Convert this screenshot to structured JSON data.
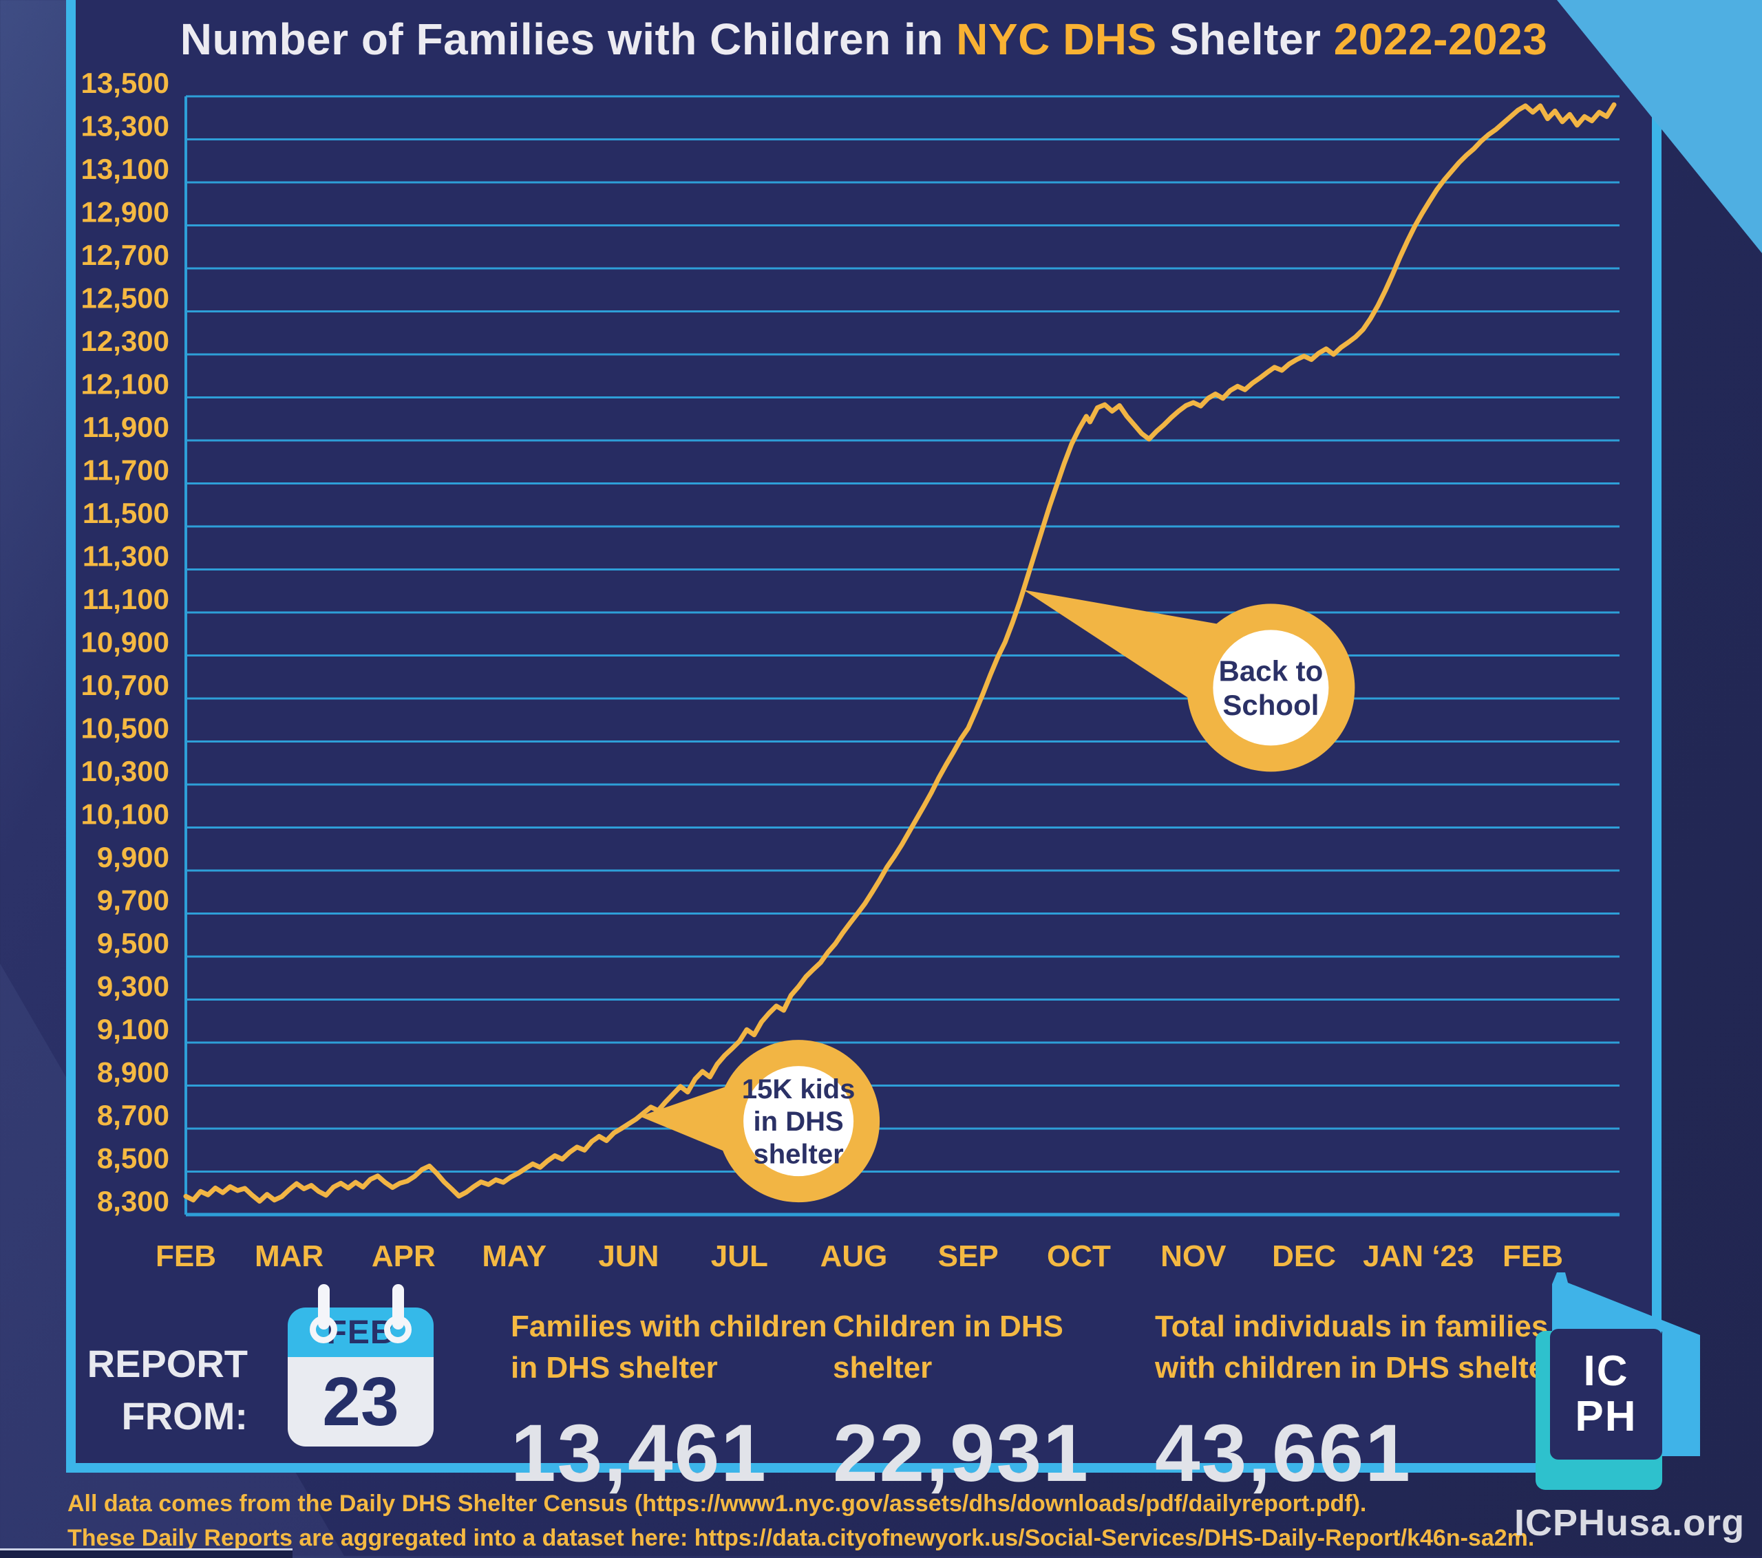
{
  "title": {
    "part1": "Number of Families with Children in ",
    "part2": "NYC DHS",
    "part3": " Shelter ",
    "part4": "2022-2023"
  },
  "colors": {
    "panel_navy": "#272C62",
    "border_cyan": "#3CB5E9",
    "corner_triangle_blue": "#4FAFE2",
    "gold_line": "#F2B544",
    "gold_text": "#F5B942",
    "grid_cyan": "#2E9FD8",
    "white_text": "#ECEBF1",
    "big_number_gray": "#E1E3E9",
    "callout_text_navy": "#2B3166",
    "calendar_header_blue": "#35B9E9",
    "logo_teal": "#2EC1CD",
    "logo_blue": "#3FB3E8"
  },
  "chart_data": {
    "type": "line",
    "title": "Number of Families with Children in NYC DHS Shelter 2022-2023",
    "xlabel": "",
    "ylabel": "",
    "y_min": 8300,
    "y_max": 13500,
    "y_tick_step": 200,
    "grid": "on",
    "legend_position": "none",
    "line_color": "#F2B544",
    "grid_color": "#2E9FD8",
    "label_color": "#F5B942",
    "x_labels": [
      "FEB",
      "MAR",
      "APR",
      "MAY",
      "JUN",
      "JUL",
      "AUG",
      "SEP",
      "OCT",
      "NOV",
      "DEC",
      "JAN ‘23",
      "FEB"
    ],
    "x_label_days": [
      0,
      28,
      59,
      89,
      120,
      150,
      181,
      212,
      242,
      273,
      303,
      334,
      365
    ],
    "total_days": 387,
    "series": [
      {
        "name": "Families with children in DHS shelter",
        "points": [
          [
            0,
            8385
          ],
          [
            2,
            8368
          ],
          [
            4,
            8408
          ],
          [
            6,
            8392
          ],
          [
            8,
            8424
          ],
          [
            10,
            8402
          ],
          [
            12,
            8430
          ],
          [
            14,
            8412
          ],
          [
            16,
            8422
          ],
          [
            18,
            8390
          ],
          [
            20,
            8362
          ],
          [
            22,
            8394
          ],
          [
            24,
            8368
          ],
          [
            26,
            8384
          ],
          [
            28,
            8416
          ],
          [
            30,
            8444
          ],
          [
            32,
            8420
          ],
          [
            34,
            8436
          ],
          [
            36,
            8408
          ],
          [
            38,
            8390
          ],
          [
            40,
            8428
          ],
          [
            42,
            8446
          ],
          [
            44,
            8424
          ],
          [
            46,
            8450
          ],
          [
            48,
            8428
          ],
          [
            50,
            8464
          ],
          [
            52,
            8480
          ],
          [
            54,
            8450
          ],
          [
            56,
            8426
          ],
          [
            58,
            8446
          ],
          [
            60,
            8456
          ],
          [
            62,
            8478
          ],
          [
            64,
            8510
          ],
          [
            66,
            8526
          ],
          [
            68,
            8492
          ],
          [
            70,
            8452
          ],
          [
            72,
            8420
          ],
          [
            74,
            8386
          ],
          [
            76,
            8404
          ],
          [
            78,
            8430
          ],
          [
            80,
            8452
          ],
          [
            82,
            8440
          ],
          [
            84,
            8462
          ],
          [
            86,
            8450
          ],
          [
            88,
            8474
          ],
          [
            90,
            8492
          ],
          [
            92,
            8514
          ],
          [
            94,
            8536
          ],
          [
            96,
            8520
          ],
          [
            98,
            8550
          ],
          [
            100,
            8574
          ],
          [
            102,
            8558
          ],
          [
            104,
            8590
          ],
          [
            106,
            8614
          ],
          [
            108,
            8600
          ],
          [
            110,
            8640
          ],
          [
            112,
            8664
          ],
          [
            114,
            8644
          ],
          [
            116,
            8680
          ],
          [
            118,
            8700
          ],
          [
            120,
            8722
          ],
          [
            122,
            8744
          ],
          [
            124,
            8772
          ],
          [
            126,
            8800
          ],
          [
            128,
            8784
          ],
          [
            130,
            8824
          ],
          [
            132,
            8860
          ],
          [
            134,
            8896
          ],
          [
            136,
            8870
          ],
          [
            138,
            8930
          ],
          [
            140,
            8966
          ],
          [
            142,
            8940
          ],
          [
            144,
            9000
          ],
          [
            146,
            9040
          ],
          [
            148,
            9072
          ],
          [
            150,
            9106
          ],
          [
            152,
            9160
          ],
          [
            154,
            9136
          ],
          [
            156,
            9196
          ],
          [
            158,
            9236
          ],
          [
            160,
            9270
          ],
          [
            162,
            9250
          ],
          [
            164,
            9320
          ],
          [
            166,
            9360
          ],
          [
            168,
            9406
          ],
          [
            170,
            9440
          ],
          [
            172,
            9472
          ],
          [
            174,
            9520
          ],
          [
            176,
            9560
          ],
          [
            178,
            9610
          ],
          [
            180,
            9656
          ],
          [
            182,
            9700
          ],
          [
            184,
            9746
          ],
          [
            186,
            9800
          ],
          [
            188,
            9856
          ],
          [
            190,
            9916
          ],
          [
            192,
            9966
          ],
          [
            194,
            10020
          ],
          [
            196,
            10080
          ],
          [
            198,
            10140
          ],
          [
            200,
            10200
          ],
          [
            202,
            10262
          ],
          [
            204,
            10330
          ],
          [
            206,
            10392
          ],
          [
            208,
            10450
          ],
          [
            210,
            10512
          ],
          [
            212,
            10562
          ],
          [
            214,
            10640
          ],
          [
            216,
            10722
          ],
          [
            218,
            10810
          ],
          [
            220,
            10892
          ],
          [
            222,
            10962
          ],
          [
            224,
            11052
          ],
          [
            226,
            11152
          ],
          [
            228,
            11262
          ],
          [
            230,
            11372
          ],
          [
            232,
            11482
          ],
          [
            234,
            11592
          ],
          [
            236,
            11692
          ],
          [
            238,
            11792
          ],
          [
            240,
            11882
          ],
          [
            242,
            11952
          ],
          [
            244,
            12012
          ],
          [
            245,
            11986
          ],
          [
            247,
            12052
          ],
          [
            249,
            12066
          ],
          [
            251,
            12036
          ],
          [
            253,
            12062
          ],
          [
            255,
            12012
          ],
          [
            257,
            11972
          ],
          [
            259,
            11932
          ],
          [
            261,
            11906
          ],
          [
            263,
            11942
          ],
          [
            265,
            11972
          ],
          [
            267,
            12006
          ],
          [
            269,
            12036
          ],
          [
            271,
            12062
          ],
          [
            273,
            12076
          ],
          [
            275,
            12060
          ],
          [
            277,
            12096
          ],
          [
            279,
            12116
          ],
          [
            281,
            12096
          ],
          [
            283,
            12132
          ],
          [
            285,
            12152
          ],
          [
            287,
            12136
          ],
          [
            289,
            12166
          ],
          [
            291,
            12190
          ],
          [
            293,
            12216
          ],
          [
            295,
            12240
          ],
          [
            297,
            12226
          ],
          [
            299,
            12256
          ],
          [
            301,
            12276
          ],
          [
            303,
            12292
          ],
          [
            305,
            12276
          ],
          [
            307,
            12306
          ],
          [
            309,
            12326
          ],
          [
            311,
            12300
          ],
          [
            313,
            12332
          ],
          [
            315,
            12356
          ],
          [
            317,
            12382
          ],
          [
            319,
            12416
          ],
          [
            321,
            12466
          ],
          [
            323,
            12526
          ],
          [
            325,
            12596
          ],
          [
            327,
            12672
          ],
          [
            329,
            12752
          ],
          [
            331,
            12826
          ],
          [
            333,
            12896
          ],
          [
            335,
            12956
          ],
          [
            337,
            13012
          ],
          [
            339,
            13066
          ],
          [
            341,
            13112
          ],
          [
            343,
            13152
          ],
          [
            345,
            13192
          ],
          [
            347,
            13226
          ],
          [
            349,
            13256
          ],
          [
            351,
            13292
          ],
          [
            353,
            13322
          ],
          [
            355,
            13346
          ],
          [
            357,
            13376
          ],
          [
            359,
            13406
          ],
          [
            361,
            13436
          ],
          [
            363,
            13456
          ],
          [
            365,
            13426
          ],
          [
            367,
            13456
          ],
          [
            369,
            13396
          ],
          [
            371,
            13432
          ],
          [
            373,
            13382
          ],
          [
            375,
            13416
          ],
          [
            377,
            13366
          ],
          [
            379,
            13406
          ],
          [
            381,
            13386
          ],
          [
            383,
            13426
          ],
          [
            385,
            13406
          ],
          [
            387,
            13461
          ]
        ]
      }
    ],
    "annotations": [
      {
        "lines": [
          "Back to",
          "School"
        ],
        "tip": [
          227,
          11205
        ],
        "center": [
          294,
          10750
        ],
        "outer_r": 122,
        "inner_r": 84,
        "font": 42
      },
      {
        "lines": [
          "15K kids",
          "in DHS",
          "shelter"
        ],
        "tip": [
          123,
          8757
        ],
        "center": [
          166,
          8735
        ],
        "outer_r": 118,
        "inner_r": 80,
        "font": 40
      }
    ]
  },
  "report": {
    "heading_line1": "REPORT",
    "heading_line2": "FROM:",
    "calendar_month": "FEB",
    "calendar_day": "23"
  },
  "stats": [
    {
      "label_lines": {
        "0": "Families with children",
        "1": "in DHS shelter"
      },
      "value": "13,461"
    },
    {
      "label_lines": {
        "0": "Children in DHS",
        "1": "shelter"
      },
      "value": "22,931"
    },
    {
      "label_lines": {
        "0": "Total individuals in families",
        "1": "with children in DHS shelter"
      },
      "value": "43,661"
    }
  ],
  "footer": {
    "line1": "All data comes from the Daily DHS Shelter Census (https://www1.nyc.gov/assets/dhs/downloads/pdf/dailyreport.pdf).",
    "line2": "These Daily Reports are aggregated into a dataset here: https://data.cityofnewyork.us/Social-Services/DHS-Daily-Report/k46n-sa2m."
  },
  "branding": {
    "logo_line1": "IC",
    "logo_line2": "PH",
    "website": "ICPHusa.org"
  }
}
